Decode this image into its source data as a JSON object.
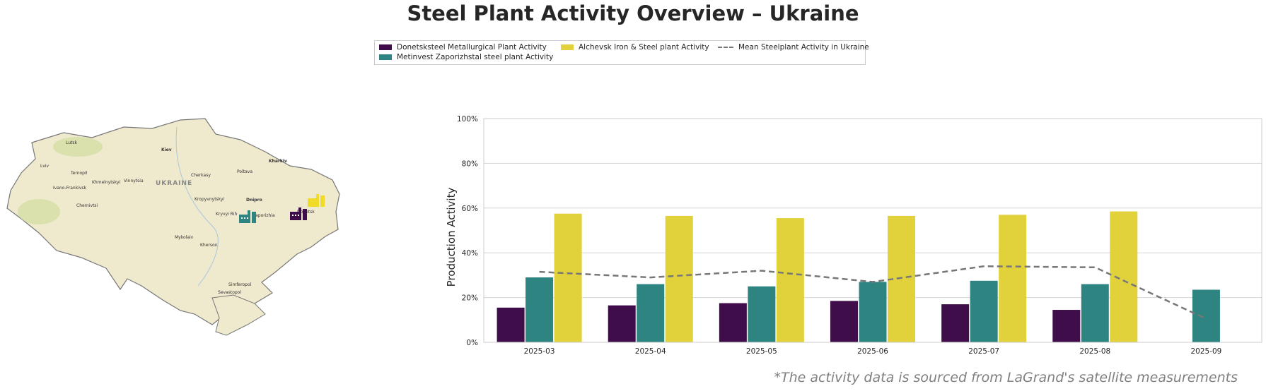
{
  "page": {
    "title": "Steel Plant Activity Overview – Ukraine",
    "footnote": "*The activity data is sourced from LaGrand's satellite measurements"
  },
  "legend": {
    "items": [
      {
        "label": "Donetsksteel Metallurgical Plant Activity",
        "color": "#3f0d4a"
      },
      {
        "label": "Metinvest Zaporizhstal steel plant Activity",
        "color": "#2d8480"
      },
      {
        "label": "Alchevsk Iron & Steel plant Activity",
        "color": "#e1d13a"
      },
      {
        "label": "Mean Steelplant Activity in Ukraine",
        "color": "#777777"
      }
    ]
  },
  "map": {
    "country_label": "UKRAINE",
    "cities": [
      "Lutsk",
      "Kiev",
      "Kharkiv",
      "Lviv",
      "Ternopil",
      "Poltava",
      "Ivano-Frankivsk",
      "Khmelnytskyi",
      "Vinnytsia",
      "Cherkasy",
      "Chernivtsi",
      "Kropyvnytskyi",
      "Dnipro",
      "Kryvyi Rih",
      "Zaporizhia",
      "Donetsk",
      "Mykolaiv",
      "Kherson",
      "Simferopol",
      "Sevastopol"
    ],
    "plant_icons": [
      {
        "name": "Donetsksteel Metallurgical Plant",
        "color": "#3f0d4a"
      },
      {
        "name": "Metinvest Zaporizhstal steel plant",
        "color": "#2d8480"
      },
      {
        "name": "Alchevsk Iron & Steel plant",
        "color": "#f0dc28"
      }
    ]
  },
  "chart_data": {
    "type": "bar",
    "categories": [
      "2025-03",
      "2025-04",
      "2025-05",
      "2025-06",
      "2025-07",
      "2025-08",
      "2025-09"
    ],
    "series": [
      {
        "name": "Donetsksteel Metallurgical Plant Activity",
        "values": [
          15.5,
          16.5,
          17.5,
          18.5,
          17,
          14.5,
          null
        ]
      },
      {
        "name": "Metinvest Zaporizhstal steel plant Activity",
        "values": [
          29,
          26,
          25,
          27,
          27.5,
          26,
          23.5
        ]
      },
      {
        "name": "Alchevsk Iron & Steel plant Activity",
        "values": [
          57.5,
          56.5,
          55.5,
          56.5,
          57,
          58.5,
          null
        ]
      }
    ],
    "line": {
      "name": "Mean Steelplant Activity in Ukraine",
      "style": "dashed",
      "values": [
        31.5,
        29,
        32,
        27,
        34,
        33.5,
        10.5
      ]
    },
    "ylabel": "Production Activity",
    "xlabel": "",
    "ylim": [
      0,
      100
    ],
    "yticks": [
      "0%",
      "20%",
      "40%",
      "60%",
      "80%",
      "100%"
    ],
    "grid": "horizontal"
  }
}
